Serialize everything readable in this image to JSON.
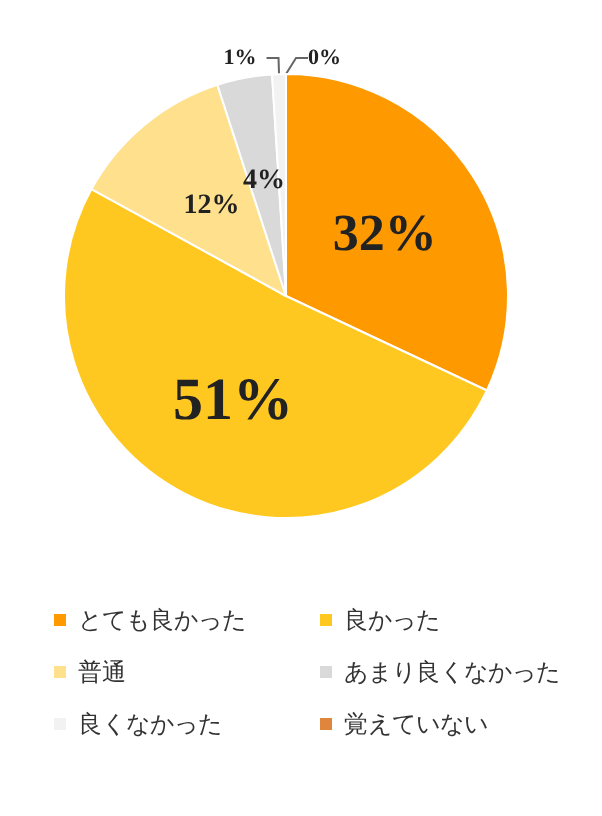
{
  "chart_data": {
    "type": "pie",
    "categories": [
      "とても良かった",
      "良かった",
      "普通",
      "あまり良くなかった",
      "良くなかった",
      "覚えていない"
    ],
    "values": [
      32,
      51,
      12,
      4,
      1,
      0
    ],
    "colors": [
      "#ff9900",
      "#ffc820",
      "#ffe08c",
      "#d9d9d9",
      "#f2f2f2",
      "#e0863c"
    ],
    "value_labels": [
      "32%",
      "51%",
      "12%",
      "4%",
      "1%",
      "0%"
    ],
    "legend": "bottom"
  }
}
